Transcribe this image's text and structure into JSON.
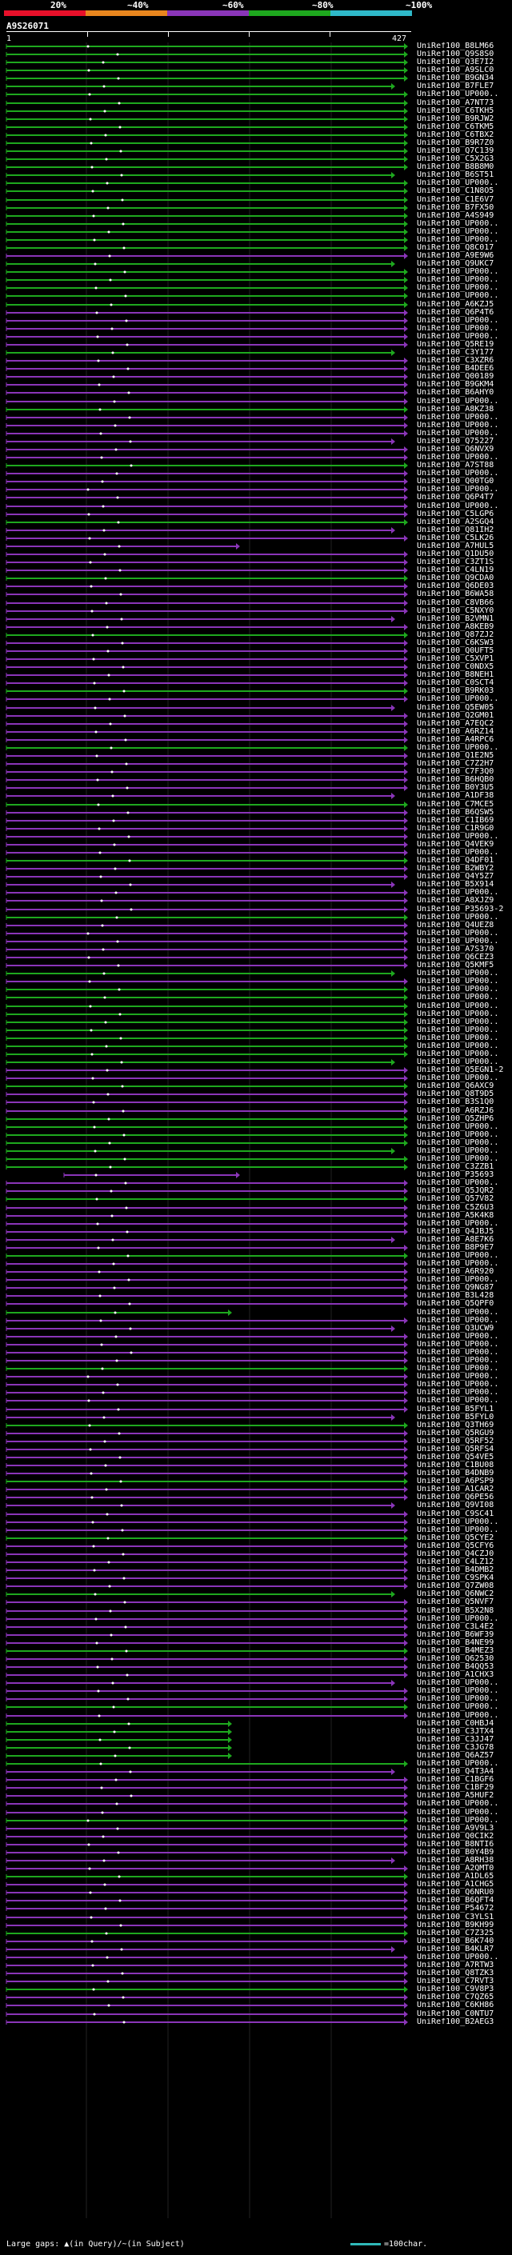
{
  "scale": {
    "labels": [
      "20%",
      "~40%",
      "~60%",
      "~80%",
      "~100%"
    ],
    "colors": [
      "#e8102a",
      "#e9861e",
      "#8a35b8",
      "#1ea81e",
      "#2fb9c9"
    ]
  },
  "query": {
    "id": "A9S26071",
    "start": "1",
    "end": "427"
  },
  "legend": {
    "gap_text": "Large gaps: ▲(in Query)/~(in Subject)",
    "scale_text": "=100char."
  },
  "hits": [
    "UniRef100_B8LM66",
    "UniRef100_Q9S8S0",
    "UniRef100_Q3E7I2",
    "UniRef100_A9SLC0",
    "UniRef100_B9GN34",
    "UniRef100_B7FLE7",
    "UniRef100_UP000..",
    "UniRef100_A7NT73",
    "UniRef100_C6TKH5",
    "UniRef100_B9RJW2",
    "UniRef100_C6TKM5",
    "UniRef100_C6TBX2",
    "UniRef100_B9R7Z0",
    "UniRef100_Q7C139",
    "UniRef100_C5X2G3",
    "UniRef100_B8B8M0",
    "UniRef100_B6ST51",
    "UniRef100_UP000..",
    "UniRef100_C1N8O5",
    "UniRef100_C1E6V7",
    "UniRef100_B7FX50",
    "UniRef100_A4S949",
    "UniRef100_UP000..",
    "UniRef100_UP000..",
    "UniRef100_UP000..",
    "UniRef100_Q8C017",
    "UniRef100_A9E9W6",
    "UniRef100_Q9UKC7",
    "UniRef100_UP000..",
    "UniRef100_UP000..",
    "UniRef100_UP000..",
    "UniRef100_UP000..",
    "UniRef100_A6KZJ5",
    "UniRef100_Q6P4T6",
    "UniRef100_UP000..",
    "UniRef100_UP000..",
    "UniRef100_UP000..",
    "UniRef100_Q5RE19",
    "UniRef100_C3Y177",
    "UniRef100_C3XZR6",
    "UniRef100_B4DEE6",
    "UniRef100_Q00189",
    "UniRef100_B9GKM4",
    "UniRef100_B6AHY0",
    "UniRef100_UP000..",
    "UniRef100_A8KZ38",
    "UniRef100_UP000..",
    "UniRef100_UP000..",
    "UniRef100_UP000..",
    "UniRef100_Q75227",
    "UniRef100_Q6NVX9",
    "UniRef100_UP000..",
    "UniRef100_A7ST88",
    "UniRef100_UP000..",
    "UniRef100_Q00TG0",
    "UniRef100_UP000..",
    "UniRef100_Q6P4T7",
    "UniRef100_UP000..",
    "UniRef100_C5LGP6",
    "UniRef100_A2SGQ4",
    "UniRef100_Q81IH2",
    "UniRef100_C5LK26",
    "UniRef100_A7HUL5",
    "UniRef100_Q1DU50",
    "UniRef100_C3ZT1S",
    "UniRef100_C4LN19",
    "UniRef100_Q9CDA0",
    "UniRef100_Q6DE03",
    "UniRef100_B6WA58",
    "UniRef100_C8VB66",
    "UniRef100_C5NXY0",
    "UniRef100_B2VMN1",
    "UniRef100_A8KEB9",
    "UniRef100_Q87ZJ2",
    "UniRef100_C6KSW3",
    "UniRef100_Q0UFT5",
    "UniRef100_C5XVP1",
    "UniRef100_C0NDX5",
    "UniRef100_B8NEH1",
    "UniRef100_C0SCT4",
    "UniRef100_B9RK03",
    "UniRef100_UP000..",
    "UniRef100_Q5EW05",
    "UniRef100_Q2GM01",
    "UniRef100_A7EQC2",
    "UniRef100_A6RZ14",
    "UniRef100_A4RPC6",
    "UniRef100_UP000..",
    "UniRef100_Q1E2N5",
    "UniRef100_C7Z2H7",
    "UniRef100_C7F3Q0",
    "UniRef100_B6HQB0",
    "UniRef100_B0Y3U5",
    "UniRef100_A1DF38",
    "UniRef100_C7MCE5",
    "UniRef100_B6QSW5",
    "UniRef100_C1IB69",
    "UniRef100_C1R9G0",
    "UniRef100_UP000..",
    "UniRef100_Q4VEK9",
    "UniRef100_UP000..",
    "UniRef100_Q4DF01",
    "UniRef100_B2WBY2",
    "UniRef100_Q4Y5Z7",
    "UniRef100_B5X914",
    "UniRef100_UP000..",
    "UniRef100_A8XJZ9",
    "UniRef100_P35693-2",
    "UniRef100_UP000..",
    "UniRef100_Q4UEZ8",
    "UniRef100_UP000..",
    "UniRef100_UP000..",
    "UniRef100_A7S370",
    "UniRef100_Q6CEZ3",
    "UniRef100_Q5KMF5",
    "UniRef100_UP000..",
    "UniRef100_UP000..",
    "UniRef100_UP000..",
    "UniRef100_UP000..",
    "UniRef100_UP000..",
    "UniRef100_UP000..",
    "UniRef100_UP000..",
    "UniRef100_UP000..",
    "UniRef100_UP000..",
    "UniRef100_UP000..",
    "UniRef100_UP000..",
    "UniRef100_UP000..",
    "UniRef100_Q5EGN1-2",
    "UniRef100_UP000..",
    "UniRef100_Q6AXC9",
    "UniRef100_Q8T9D5",
    "UniRef100_B3S1Q0",
    "UniRef100_A6RZJ6",
    "UniRef100_Q5ZHP6",
    "UniRef100_UP000..",
    "UniRef100_UP000..",
    "UniRef100_UP000..",
    "UniRef100_UP000..",
    "UniRef100_UP000..",
    "UniRef100_C3ZZB1",
    "UniRef100_P35693",
    "UniRef100_UP000..",
    "UniRef100_Q5JQR2",
    "UniRef100_Q57V82",
    "UniRef100_C5Z6U3",
    "UniRef100_A5K4K8",
    "UniRef100_UP000..",
    "UniRef100_Q4JBJ5",
    "UniRef100_A8E7K6",
    "UniRef100_B8P9E7",
    "UniRef100_UP000..",
    "UniRef100_UP000..",
    "UniRef100_A6R920",
    "UniRef100_UP000..",
    "UniRef100_Q9NG87",
    "UniRef100_B3L428",
    "UniRef100_Q5QPF0",
    "UniRef100_UP000..",
    "UniRef100_UP000..",
    "UniRef100_Q3UCW9",
    "UniRef100_UP000..",
    "UniRef100_UP000..",
    "UniRef100_UP000..",
    "UniRef100_UP000..",
    "UniRef100_UP000..",
    "UniRef100_UP000..",
    "UniRef100_UP000..",
    "UniRef100_UP000..",
    "UniRef100_UP000..",
    "UniRef100_B5FYL1",
    "UniRef100_B5FYL0",
    "UniRef100_Q3TH69",
    "UniRef100_Q5RGU9",
    "UniRef100_Q5RF52",
    "UniRef100_Q5RFS4",
    "UniRef100_Q54VE5",
    "UniRef100_C1BU08",
    "UniRef100_B4DNB9",
    "UniRef100_A6PSP9",
    "UniRef100_A1CAR2",
    "UniRef100_Q6PE56",
    "UniRef100_Q9VI08",
    "UniRef100_C9SC41",
    "UniRef100_UP000..",
    "UniRef100_UP000..",
    "UniRef100_Q5CYE2",
    "UniRef100_Q5CFY6",
    "UniRef100_Q4CZJ0",
    "UniRef100_C4LZ12",
    "UniRef100_B4DMB2",
    "UniRef100_C9SPK4",
    "UniRef100_Q7ZW08",
    "UniRef100_Q6NWC2",
    "UniRef100_Q5NVF7",
    "UniRef100_B5X2N8",
    "UniRef100_UP000..",
    "UniRef100_C3L4E2",
    "UniRef100_B6WF39",
    "UniRef100_B4NE99",
    "UniRef100_B4MEZ3",
    "UniRef100_Q62530",
    "UniRef100_B4QQ53",
    "UniRef100_A1CHX3",
    "UniRef100_UP000..",
    "UniRef100_UP000..",
    "UniRef100_UP000..",
    "UniRef100_UP000..",
    "UniRef100_UP000..",
    "UniRef100_C0HBJ4",
    "UniRef100_C3JTX4",
    "UniRef100_C3JJ47",
    "UniRef100_C3JG78",
    "UniRef100_Q6AZ57",
    "UniRef100_UP000..",
    "UniRef100_Q4T3A4",
    "UniRef100_C1BGF6",
    "UniRef100_C1BF29",
    "UniRef100_A5HUF2",
    "UniRef100_UP000..",
    "UniRef100_UP000..",
    "UniRef100_UP000..",
    "UniRef100_A9V9L3",
    "UniRef100_Q0CIK2",
    "UniRef100_B8NTI6",
    "UniRef100_B0Y4B9",
    "UniRef100_A8RH38",
    "UniRef100_A2QMT0",
    "UniRef100_A1DL65",
    "UniRef100_A1CHG5",
    "UniRef100_Q6NRU0",
    "UniRef100_B6QFT4",
    "UniRef100_P54672",
    "UniRef100_C3YLS1",
    "UniRef100_B9KH99",
    "UniRef100_C7Z325",
    "UniRef100_B6K740",
    "UniRef100_B4KLR7",
    "UniRef100_UP000..",
    "UniRef100_A7RTW3",
    "UniRef100_Q8TZK3",
    "UniRef100_C7RVT3",
    "UniRef100_C9V8P3",
    "UniRef100_C7QZ65",
    "UniRef100_C6KH86",
    "UniRef100_C0NTU7",
    "UniRef100_B2AEG3"
  ]
}
